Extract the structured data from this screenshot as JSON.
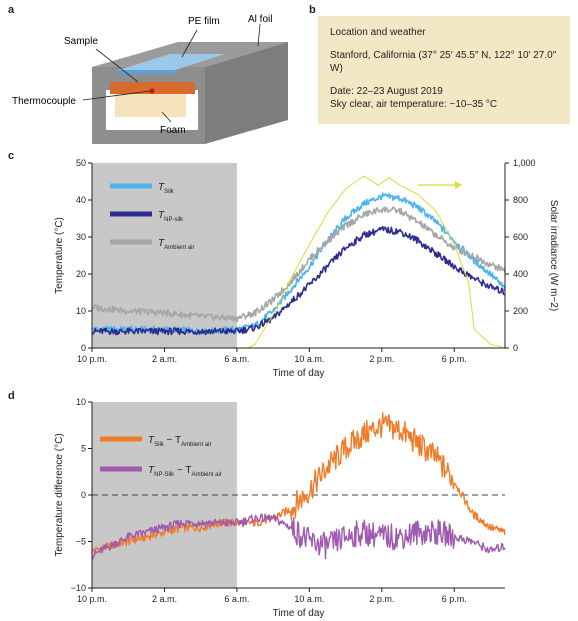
{
  "panel_labels": {
    "a": "a",
    "b": "b",
    "c": "c",
    "d": "d"
  },
  "schematic": {
    "pe_film": "PE film",
    "al_foil": "Al foil",
    "sample": "Sample",
    "thermocouple": "Thermocouple",
    "foam": "Foam"
  },
  "weather": {
    "title": "Location and weather",
    "location": "Stanford, California (37° 25′ 45.5″ N, 122° 10′ 27.0″ W)",
    "date": "Date: 22–23 August 2019",
    "sky": "Sky clear, air temperature: ~10–35 °C"
  },
  "colors": {
    "silk": "#4db3ee",
    "np_silk": "#2e2d8f",
    "ambient": "#a6a6a6",
    "solar": "#d8dd38",
    "diff_silk": "#f07c2a",
    "diff_np": "#a05bb0",
    "night_shade": "#c8c8c8"
  },
  "chart_data": [
    {
      "type": "line",
      "panel": "c",
      "xlabel": "Time of day",
      "ylabel": "Temperature (°C)",
      "y2label": "Solar irradiance (W m−2)",
      "x_ticks": [
        "10 p.m.",
        "2 a.m.",
        "6 a.m.",
        "10 a.m.",
        "2 p.m.",
        "6 p.m."
      ],
      "x_tick_hours": [
        22,
        26,
        30,
        34,
        38,
        42
      ],
      "xlim_hours": [
        22,
        44.8
      ],
      "ylim": [
        0,
        50
      ],
      "y_ticks": [
        "0",
        "10",
        "20",
        "30",
        "40",
        "50"
      ],
      "y2lim": [
        0,
        1000
      ],
      "y2_ticks": [
        "0",
        "200",
        "400",
        "600",
        "800",
        "1,000"
      ],
      "night_shade_hours": [
        22,
        30
      ],
      "legend": [
        {
          "label": "T",
          "sub": "Silk"
        },
        {
          "label": "T",
          "sub": "NP-silk"
        },
        {
          "label": "T",
          "sub": "Ambient air"
        }
      ],
      "series": [
        {
          "name": "T Silk",
          "hours": [
            22,
            24,
            26,
            28,
            30,
            31,
            32,
            33,
            34,
            35,
            36,
            37,
            38,
            39,
            40,
            41,
            42,
            43,
            44,
            44.8
          ],
          "values": [
            5,
            5,
            5,
            4.5,
            5,
            6,
            10,
            16,
            22,
            29,
            35,
            39,
            41,
            40.5,
            38,
            34,
            29,
            24,
            20,
            16
          ]
        },
        {
          "name": "T NP-silk",
          "hours": [
            22,
            24,
            26,
            28,
            30,
            31,
            32,
            33,
            34,
            35,
            36,
            37,
            38,
            39,
            40,
            41,
            42,
            43,
            44,
            44.8
          ],
          "values": [
            4.5,
            4.5,
            4.5,
            4.5,
            4.5,
            5.5,
            8,
            12.5,
            17,
            22,
            27,
            30.5,
            32,
            31.5,
            29,
            25.5,
            22,
            19,
            16.5,
            15
          ]
        },
        {
          "name": "T Ambient air",
          "hours": [
            22,
            24,
            26,
            28,
            30,
            31,
            32,
            33,
            34,
            35,
            36,
            37,
            38,
            39,
            40,
            41,
            42,
            43,
            44,
            44.8
          ],
          "values": [
            11,
            10,
            9.5,
            8.5,
            8,
            9.5,
            13,
            18,
            24,
            29,
            33,
            36,
            37.5,
            37,
            34,
            30.5,
            27,
            25,
            22.5,
            21
          ]
        },
        {
          "name": "Solar irradiance",
          "axis": "right",
          "hours": [
            30.6,
            31,
            32,
            33,
            34,
            35,
            36,
            37,
            37.8,
            38.4,
            39,
            40,
            41,
            42,
            42.8,
            43.1,
            44,
            44.8
          ],
          "values": [
            0,
            20,
            180,
            380,
            560,
            730,
            860,
            930,
            880,
            920,
            880,
            830,
            740,
            560,
            350,
            100,
            20,
            0
          ]
        }
      ]
    },
    {
      "type": "line",
      "panel": "d",
      "xlabel": "Time of day",
      "ylabel": "Temperature difference (°C)",
      "x_ticks": [
        "10 p.m.",
        "2 a.m.",
        "6 a.m.",
        "10 a.m.",
        "2 p.m.",
        "6 p.m."
      ],
      "x_tick_hours": [
        22,
        26,
        30,
        34,
        38,
        42
      ],
      "xlim_hours": [
        22,
        44.8
      ],
      "ylim": [
        -10,
        10
      ],
      "y_ticks": [
        "−10",
        "−5",
        "0",
        "5",
        "10"
      ],
      "zero_line": 0,
      "night_shade_hours": [
        22,
        30
      ],
      "legend": [
        {
          "label": "T",
          "sub": "Silk",
          "suffix": " − T",
          "sub2": "Ambient air"
        },
        {
          "label": "T",
          "sub": "NP-Silk",
          "suffix": " − T",
          "sub2": "Ambient air"
        }
      ],
      "series": [
        {
          "name": "T Silk − T Ambient air",
          "hours": [
            22,
            23,
            24,
            25,
            26,
            27,
            28,
            29,
            30,
            31,
            32,
            33,
            34,
            35,
            36,
            37,
            38,
            39,
            40,
            41,
            42,
            43,
            44,
            44.8
          ],
          "values": [
            -6,
            -5.5,
            -5,
            -4.5,
            -4,
            -3.5,
            -3.5,
            -3,
            -3,
            -3,
            -2.5,
            -1.5,
            0.5,
            3,
            5,
            6.5,
            7.5,
            7,
            5.5,
            4,
            1.5,
            -2,
            -3.5,
            -4
          ]
        },
        {
          "name": "T NP-Silk − T Ambient air",
          "hours": [
            22,
            23,
            24,
            25,
            26,
            27,
            28,
            29,
            30,
            31,
            32,
            33,
            34,
            35,
            36,
            37,
            38,
            39,
            40,
            41,
            42,
            43,
            44,
            44.8
          ],
          "values": [
            -6.5,
            -5.5,
            -4.5,
            -4,
            -3.5,
            -3,
            -3,
            -3,
            -3,
            -2.5,
            -2.5,
            -3.5,
            -5,
            -5.5,
            -4.5,
            -4,
            -4.5,
            -4.5,
            -4,
            -4,
            -4.5,
            -5,
            -6,
            -5.5
          ]
        }
      ]
    }
  ]
}
